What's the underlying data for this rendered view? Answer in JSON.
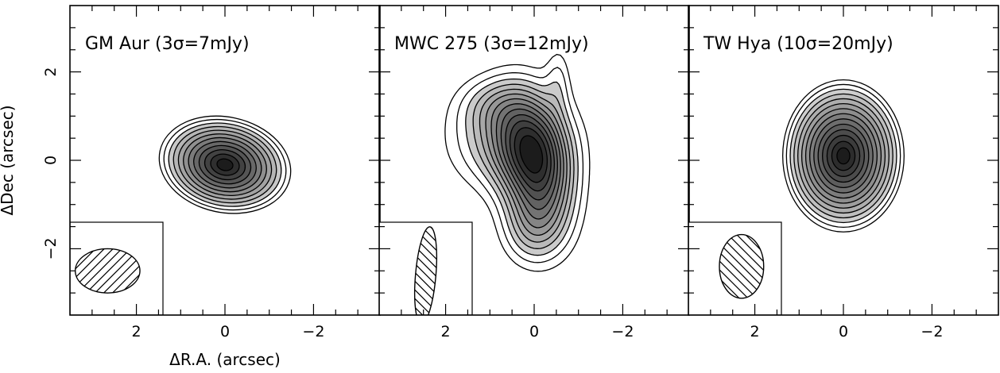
{
  "figure": {
    "xlabel": "ΔR.A. (arcsec)",
    "ylabel": "ΔDec (arcsec)"
  },
  "chart_data": [
    {
      "type": "contour",
      "title": "GM Aur (3σ=7mJy)",
      "xlabel": "ΔR.A. (arcsec)",
      "ylabel": "ΔDec (arcsec)",
      "xlim": [
        3.5,
        -3.5
      ],
      "ylim": [
        -3.5,
        3.5
      ],
      "x_ticks": [
        2,
        0,
        -2
      ],
      "y_ticks": [
        2,
        0,
        -2
      ],
      "peak": [
        0.0,
        -0.1
      ],
      "semi_axes": [
        1.5,
        1.08
      ],
      "position_angle_deg": 102,
      "levels": 12,
      "beam": {
        "center": [
          2.65,
          -2.5
        ],
        "major": 0.73,
        "minor": 0.5,
        "pa_deg": 90
      }
    },
    {
      "type": "contour",
      "title": "MWC 275 (3σ=12mJy)",
      "xlabel": "ΔR.A. (arcsec)",
      "ylabel": "ΔDec (arcsec)",
      "xlim": [
        3.5,
        -3.5
      ],
      "ylim": [
        -3.5,
        3.5
      ],
      "x_ticks": [
        2,
        0,
        -2
      ],
      "y_ticks": [
        2,
        0,
        -2
      ],
      "peak": [
        0.0,
        0.0
      ],
      "levels": 13,
      "beam": {
        "center": [
          2.45,
          -2.6
        ],
        "major": 1.1,
        "minor": 0.23,
        "pa_deg": 5
      }
    },
    {
      "type": "contour",
      "title": "TW Hya (10σ=20mJy)",
      "xlabel": "ΔR.A. (arcsec)",
      "ylabel": "ΔDec (arcsec)",
      "xlim": [
        3.5,
        -3.5
      ],
      "ylim": [
        -3.5,
        3.5
      ],
      "x_ticks": [
        2,
        0,
        -2
      ],
      "y_ticks": [
        2,
        0,
        -2
      ],
      "peak": [
        0.0,
        0.1
      ],
      "semi_axes": [
        1.37,
        1.72
      ],
      "position_angle_deg": 0,
      "levels": 14,
      "beam": {
        "center": [
          2.3,
          -2.4
        ],
        "major": 0.72,
        "minor": 0.5,
        "pa_deg": 0
      }
    }
  ]
}
